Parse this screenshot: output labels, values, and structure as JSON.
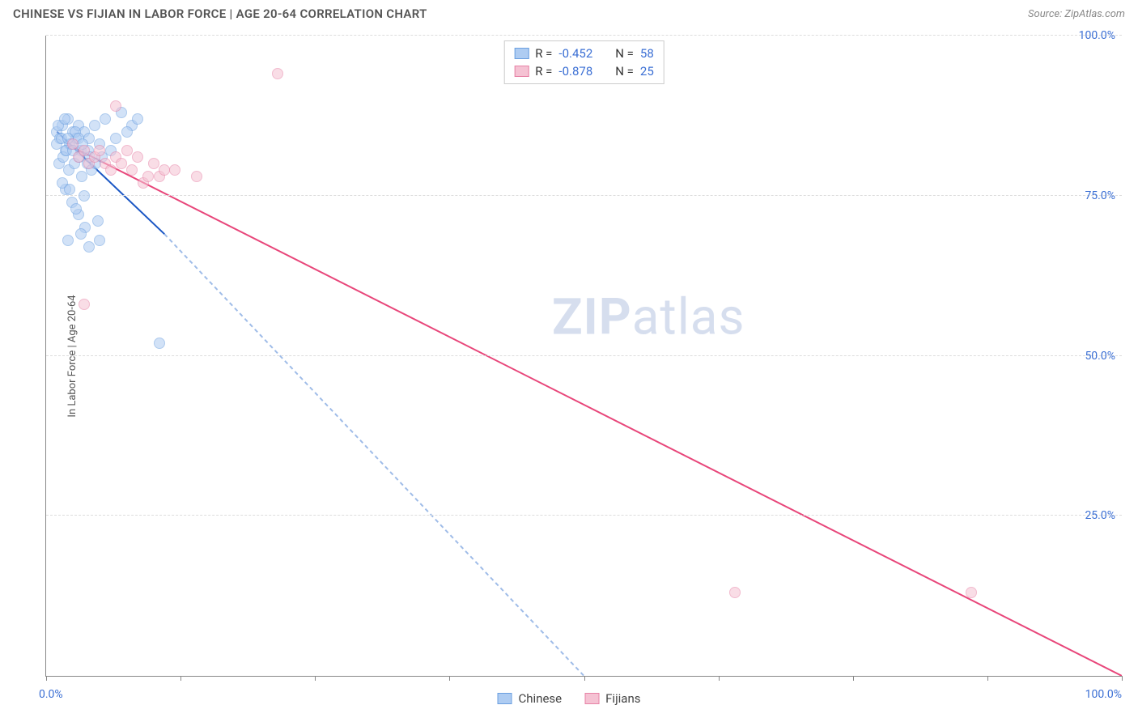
{
  "header": {
    "title": "CHINESE VS FIJIAN IN LABOR FORCE | AGE 20-64 CORRELATION CHART",
    "source": "Source: ZipAtlas.com"
  },
  "chart": {
    "type": "scatter",
    "ylabel": "In Labor Force | Age 20-64",
    "xlim": [
      0,
      100
    ],
    "ylim": [
      0,
      100
    ],
    "y_ticks": [
      25,
      50,
      75,
      100
    ],
    "y_tick_labels": [
      "25.0%",
      "50.0%",
      "75.0%",
      "100.0%"
    ],
    "x_tick_positions": [
      0,
      12.5,
      25,
      37.5,
      50,
      62.5,
      75,
      87.5,
      100
    ],
    "x_axis_label_left": "0.0%",
    "x_axis_label_right": "100.0%",
    "grid_color": "#dddddd",
    "axis_color": "#888888",
    "background_color": "#ffffff",
    "tick_label_color": "#3b6fd4",
    "marker_radius": 7,
    "series": [
      {
        "name": "Chinese",
        "fill": "#aeccf2",
        "stroke": "#6b9fe0",
        "fill_opacity": 0.55,
        "points": [
          [
            1.0,
            85
          ],
          [
            1.3,
            84
          ],
          [
            1.5,
            86
          ],
          [
            1.8,
            82
          ],
          [
            2.0,
            87
          ],
          [
            2.2,
            83
          ],
          [
            2.5,
            85
          ],
          [
            2.8,
            84
          ],
          [
            3.0,
            86
          ],
          [
            3.2,
            82
          ],
          [
            3.5,
            85
          ],
          [
            3.8,
            80
          ],
          [
            4.0,
            84
          ],
          [
            4.5,
            86
          ],
          [
            5.0,
            83
          ],
          [
            5.5,
            87
          ],
          [
            6.0,
            82
          ],
          [
            7.0,
            88
          ],
          [
            8.0,
            86
          ],
          [
            1.2,
            80
          ],
          [
            1.6,
            81
          ],
          [
            2.1,
            79
          ],
          [
            2.6,
            80
          ],
          [
            3.3,
            78
          ],
          [
            4.2,
            79
          ],
          [
            1.8,
            76
          ],
          [
            2.4,
            74
          ],
          [
            3.0,
            72
          ],
          [
            3.6,
            70
          ],
          [
            4.8,
            71
          ],
          [
            2.0,
            68
          ],
          [
            3.2,
            69
          ],
          [
            4.0,
            67
          ],
          [
            5.0,
            68
          ],
          [
            2.8,
            73
          ],
          [
            3.5,
            75
          ],
          [
            1.5,
            77
          ],
          [
            2.2,
            76
          ],
          [
            6.5,
            84
          ],
          [
            7.5,
            85
          ],
          [
            1.0,
            83
          ],
          [
            1.4,
            84
          ],
          [
            1.9,
            82
          ],
          [
            2.3,
            83
          ],
          [
            2.7,
            85
          ],
          [
            3.1,
            81
          ],
          [
            3.9,
            82
          ],
          [
            4.6,
            80
          ],
          [
            5.2,
            81
          ],
          [
            1.1,
            86
          ],
          [
            1.7,
            87
          ],
          [
            8.5,
            87
          ],
          [
            10.5,
            52
          ],
          [
            2.0,
            84
          ],
          [
            2.5,
            82
          ],
          [
            3.0,
            84
          ],
          [
            3.4,
            83
          ],
          [
            4.1,
            81
          ]
        ],
        "trendline": {
          "solid": {
            "x1": 1,
            "y1": 85,
            "x2": 11,
            "y2": 69
          },
          "dashed": {
            "x1": 11,
            "y1": 69,
            "x2": 50,
            "y2": 0
          },
          "solid_color": "#1a56c4",
          "dashed_color": "#9fbce8",
          "width": 2
        }
      },
      {
        "name": "Fijians",
        "fill": "#f5c2d3",
        "stroke": "#e782a6",
        "fill_opacity": 0.55,
        "points": [
          [
            2.5,
            83
          ],
          [
            3.0,
            81
          ],
          [
            3.5,
            82
          ],
          [
            4.0,
            80
          ],
          [
            4.5,
            81
          ],
          [
            5.0,
            82
          ],
          [
            5.5,
            80
          ],
          [
            6.0,
            79
          ],
          [
            6.5,
            81
          ],
          [
            7.0,
            80
          ],
          [
            7.5,
            82
          ],
          [
            8.0,
            79
          ],
          [
            8.5,
            81
          ],
          [
            9.0,
            77
          ],
          [
            9.5,
            78
          ],
          [
            10.0,
            80
          ],
          [
            10.5,
            78
          ],
          [
            11.0,
            79
          ],
          [
            14.0,
            78
          ],
          [
            6.5,
            89
          ],
          [
            3.5,
            58
          ],
          [
            21.5,
            94
          ],
          [
            64.0,
            13
          ],
          [
            86.0,
            13
          ],
          [
            12.0,
            79
          ]
        ],
        "trendline": {
          "solid": {
            "x1": 2,
            "y1": 83,
            "x2": 100,
            "y2": 0
          },
          "solid_color": "#e8467a",
          "width": 2
        }
      }
    ],
    "legend_top": [
      {
        "swatch_fill": "#aeccf2",
        "swatch_stroke": "#6b9fe0",
        "r_label": "R =",
        "r_value": "-0.452",
        "n_label": "N =",
        "n_value": "58"
      },
      {
        "swatch_fill": "#f5c2d3",
        "swatch_stroke": "#e782a6",
        "r_label": "R =",
        "r_value": "-0.878",
        "n_label": "N =",
        "n_value": "25"
      }
    ],
    "legend_bottom": [
      {
        "swatch_fill": "#aeccf2",
        "swatch_stroke": "#6b9fe0",
        "label": "Chinese"
      },
      {
        "swatch_fill": "#f5c2d3",
        "swatch_stroke": "#e782a6",
        "label": "Fijians"
      }
    ],
    "watermark": {
      "bold": "ZIP",
      "rest": "atlas"
    }
  }
}
